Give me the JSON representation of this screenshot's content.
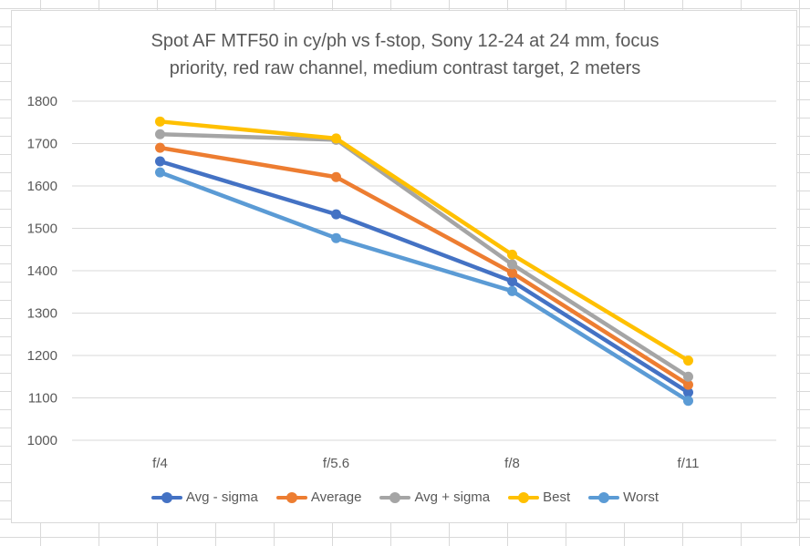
{
  "chart_data": {
    "type": "line",
    "title_lines": [
      "Spot AF MTF50 in cy/ph vs f-stop, Sony 12-24 at 24 mm, focus",
      "priority, red raw channel, medium contrast target, 2 meters"
    ],
    "categories": [
      "f/4",
      "f/5.6",
      "f/8",
      "f/11"
    ],
    "ylim": [
      1000,
      1800
    ],
    "yticks": [
      "1000",
      "1100",
      "1200",
      "1300",
      "1400",
      "1500",
      "1600",
      "1700",
      "1800"
    ],
    "grid": true,
    "legend_position": "bottom",
    "series": [
      {
        "name": "Avg - sigma",
        "color": "#4472C4",
        "values": [
          1658,
          1533,
          1375,
          1113
        ]
      },
      {
        "name": "Average",
        "color": "#ED7D31",
        "values": [
          1690,
          1621,
          1395,
          1131
        ]
      },
      {
        "name": "Avg + sigma",
        "color": "#A5A5A5",
        "values": [
          1722,
          1709,
          1415,
          1150
        ]
      },
      {
        "name": "Best",
        "color": "#FFC000",
        "values": [
          1752,
          1712,
          1438,
          1188
        ]
      },
      {
        "name": "Worst",
        "color": "#5B9BD5",
        "values": [
          1632,
          1477,
          1352,
          1093
        ]
      }
    ]
  }
}
